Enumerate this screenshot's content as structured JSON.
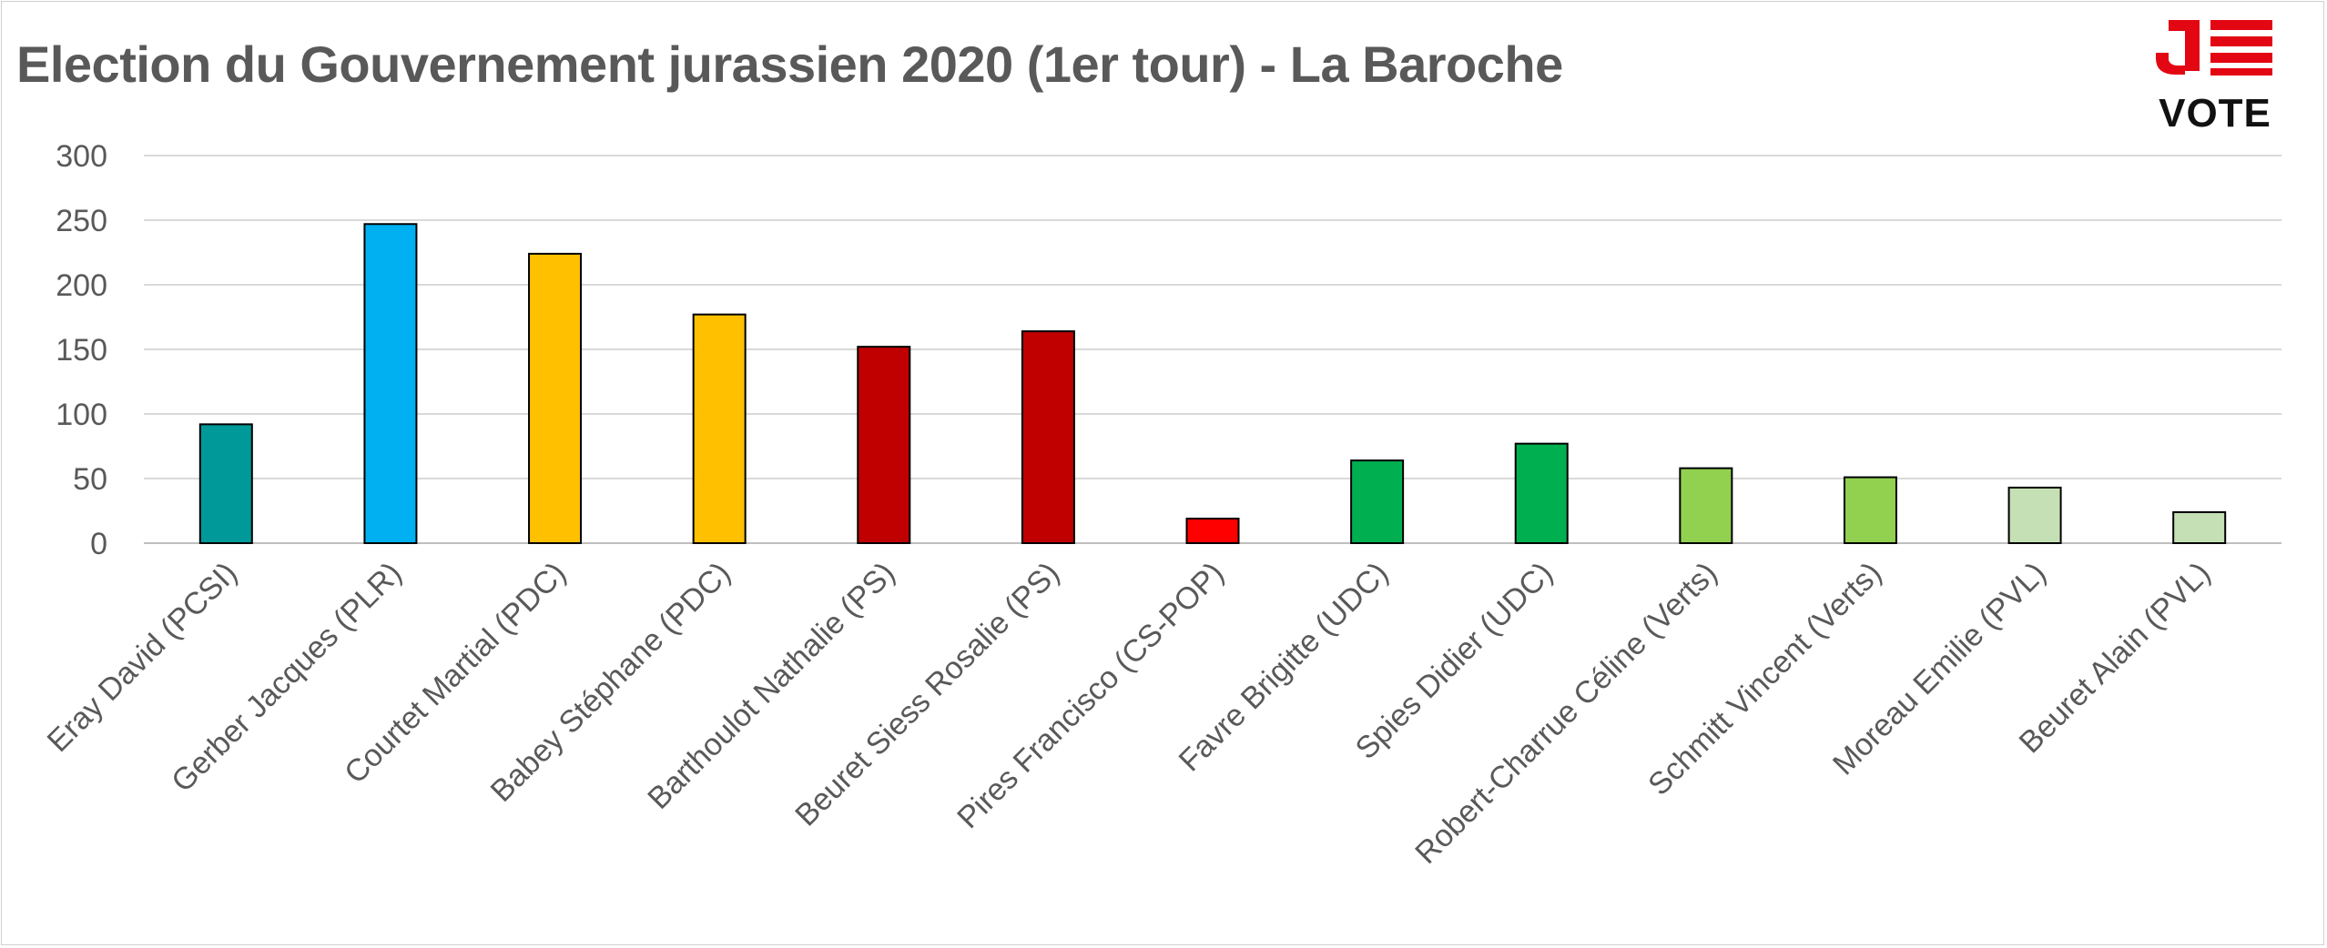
{
  "title": "Election du Gouvernement jurassien 2020 (1er tour) - La Baroche",
  "logo": {
    "icon": "je-vote-logo",
    "text": "VOTE",
    "colors": {
      "red": "#e30613",
      "dark": "#111111"
    }
  },
  "chart_data": {
    "type": "bar",
    "title": "Election du Gouvernement jurassien 2020 (1er tour) - La Baroche",
    "xlabel": "",
    "ylabel": "",
    "ylim": [
      0,
      300
    ],
    "yticks": [
      0,
      50,
      100,
      150,
      200,
      250,
      300
    ],
    "grid": true,
    "legend": "none",
    "categories": [
      "Eray David (PCSI)",
      "Gerber Jacques (PLR)",
      "Courtet Martial (PDC)",
      "Babey Stéphane (PDC)",
      "Barthoulot Nathalie (PS)",
      "Beuret Siess Rosalie (PS)",
      "Pires Francisco (CS-POP)",
      "Favre Brigitte (UDC)",
      "Spies Didier (UDC)",
      "Robert-Charrue Céline (Verts)",
      "Schmitt Vincent (Verts)",
      "Moreau Emilie (PVL)",
      "Beuret Alain (PVL)"
    ],
    "values": [
      92,
      247,
      224,
      177,
      152,
      164,
      19,
      64,
      77,
      58,
      51,
      43,
      24
    ],
    "colors": [
      "#009999",
      "#00b0f0",
      "#ffc000",
      "#ffc000",
      "#c00000",
      "#c00000",
      "#ff0000",
      "#00b050",
      "#00b050",
      "#92d050",
      "#92d050",
      "#c5e0b4",
      "#c5e0b4"
    ]
  }
}
